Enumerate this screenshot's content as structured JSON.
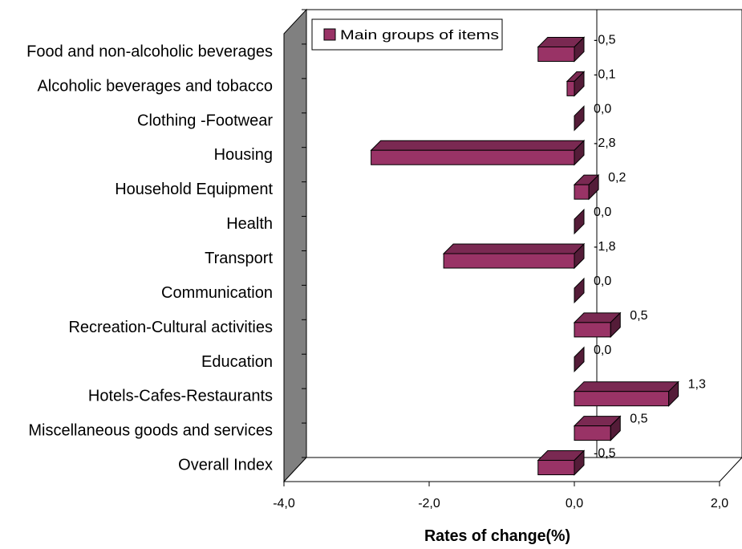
{
  "chart_data": {
    "type": "bar",
    "orientation": "horizontal",
    "three_d": true,
    "categories": [
      "Food and non-alcoholic beverages",
      "Alcoholic beverages and tobacco",
      "Clothing -Footwear",
      "Housing",
      "Household Equipment",
      "Health",
      "Transport",
      "Communication",
      "Recreation-Cultural activities",
      "Education",
      "Hotels-Cafes-Restaurants",
      "Miscellaneous goods and services",
      "Overall Index"
    ],
    "series": [
      {
        "name": "Main groups of items",
        "color": "#993366",
        "values": [
          -0.5,
          -0.1,
          0.0,
          -2.8,
          0.2,
          0.0,
          -1.8,
          0.0,
          0.5,
          0.0,
          1.3,
          0.5,
          -0.5
        ],
        "value_labels": [
          "-0,5",
          "-0,1",
          "0,0",
          "-2,8",
          "0,2",
          "0,0",
          "-1,8",
          "0,0",
          "0,5",
          "0,0",
          "1,3",
          "0,5",
          "-0,5"
        ]
      }
    ],
    "xlim": [
      -4.0,
      2.0
    ],
    "xticks": [
      -4.0,
      -2.0,
      0.0,
      2.0
    ],
    "xtick_labels": [
      "-4,0",
      "-2,0",
      "0,0",
      "2,0"
    ],
    "xlabel": "Rates of change(%)",
    "ylabel": "",
    "title": "",
    "grid": false,
    "legend": "top-left"
  }
}
